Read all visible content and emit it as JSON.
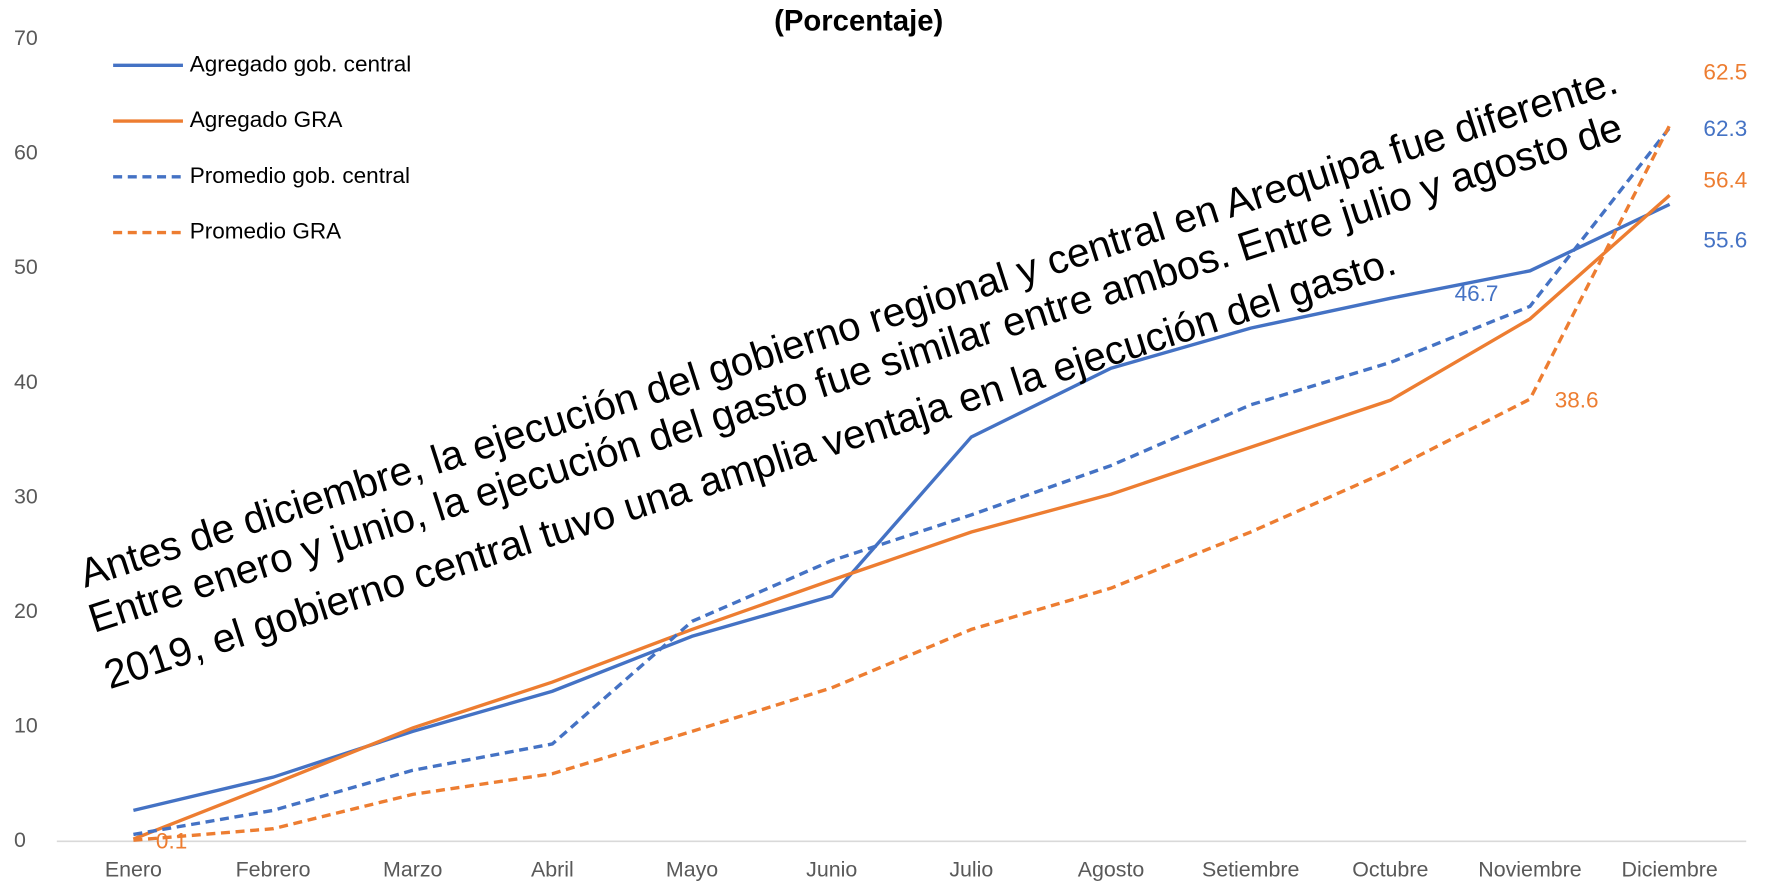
{
  "chart_data": {
    "type": "line",
    "title": "(Porcentaje)",
    "categories": [
      "Enero",
      "Febrero",
      "Marzo",
      "Abril",
      "Mayo",
      "Junio",
      "Julio",
      "Agosto",
      "Setiembre",
      "Octubre",
      "Noviembre",
      "Diciembre"
    ],
    "series": [
      {
        "name": "Agregado gob. central",
        "color": "#4472c4",
        "dashed": false,
        "values": [
          2.7,
          5.6,
          9.6,
          13.1,
          17.9,
          21.4,
          35.3,
          41.3,
          44.8,
          47.4,
          49.8,
          55.6
        ],
        "labeled": [
          11
        ]
      },
      {
        "name": "Agregado GRA",
        "color": "#ed7d31",
        "dashed": false,
        "values": [
          0.2,
          5.0,
          9.9,
          13.9,
          18.5,
          22.8,
          27.0,
          30.3,
          34.4,
          38.5,
          45.6,
          56.4
        ],
        "labeled": [
          11
        ]
      },
      {
        "name": "Promedio gob. central",
        "color": "#4472c4",
        "dashed": true,
        "values": [
          0.6,
          2.7,
          6.2,
          8.5,
          19.2,
          24.5,
          28.5,
          32.8,
          38.1,
          41.8,
          46.7,
          62.3
        ],
        "labeled": [
          10,
          11
        ]
      },
      {
        "name": "Promedio GRA",
        "color": "#ed7d31",
        "dashed": true,
        "values": [
          0.1,
          1.1,
          4.1,
          5.9,
          9.6,
          13.4,
          18.5,
          22.1,
          27.0,
          32.4,
          38.6,
          62.5
        ],
        "labeled": [
          0,
          10,
          11
        ]
      }
    ],
    "ylim": [
      0,
      70
    ],
    "yticks": [
      0,
      10,
      20,
      30,
      40,
      50,
      60,
      70
    ],
    "grid": false,
    "legend": "upper left",
    "annotation": [
      "Antes de diciembre, la ejecución del gobierno regional y central en Arequipa fue diferente.",
      "Entre enero y junio, la ejecución del gasto fue similar entre ambos. Entre julio y agosto de",
      "2019, el gobierno central tuvo una amplia ventaja en la ejecución del gasto."
    ]
  }
}
